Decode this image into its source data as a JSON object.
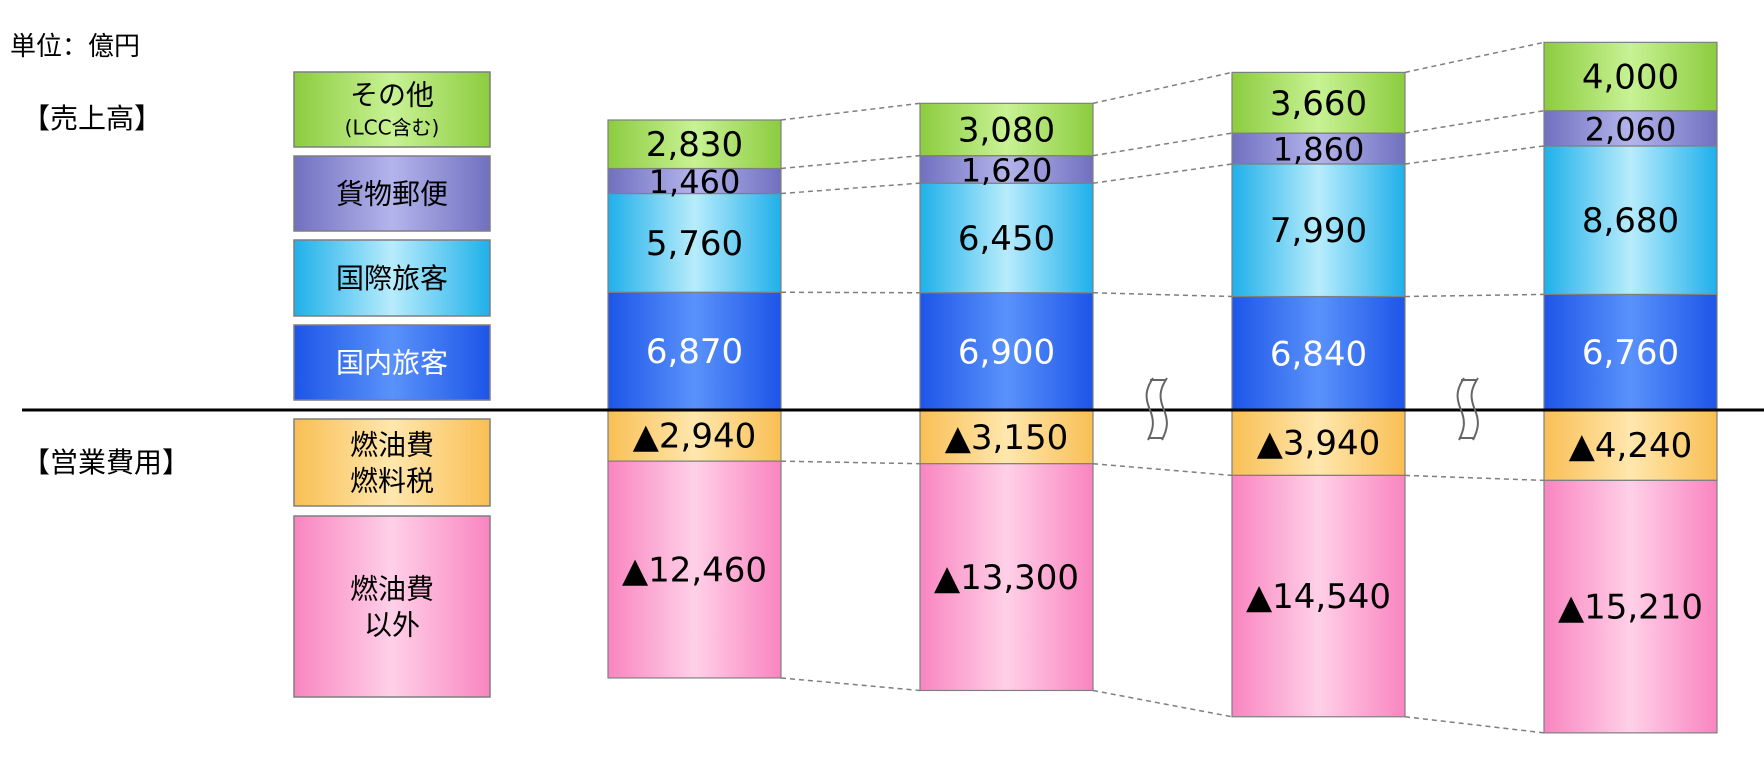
{
  "unit_label": "単位：億円",
  "revenue_heading": "【売上高】",
  "expense_heading": "【営業費用】",
  "legend": [
    {
      "key": "other",
      "lines": [
        "その他",
        "(LCC含む)"
      ],
      "color": "#a4d85e"
    },
    {
      "key": "cargo",
      "lines": [
        "貨物郵便"
      ],
      "color": "#8f8fd6"
    },
    {
      "key": "intl",
      "lines": [
        "国際旅客"
      ],
      "color": "#3ec0ef"
    },
    {
      "key": "dom",
      "lines": [
        "国内旅客"
      ],
      "color": "#2f6cf5"
    },
    {
      "key": "fuel",
      "lines": [
        "燃油費",
        "燃料税"
      ],
      "color": "#fdd27a"
    },
    {
      "key": "nonfuel",
      "lines": [
        "燃油費",
        "以外"
      ],
      "color": "#fba3d0"
    }
  ],
  "chart_data": {
    "type": "bar",
    "stacked": true,
    "categories": [
      "",
      "",
      "",
      ""
    ],
    "revenue_series": [
      {
        "key": "dom",
        "values": [
          6870,
          6900,
          6840,
          6760
        ],
        "labels": [
          "6,870",
          "6,900",
          "6,840",
          "6,760"
        ]
      },
      {
        "key": "intl",
        "values": [
          5760,
          6450,
          7990,
          8680
        ],
        "labels": [
          "5,760",
          "6,450",
          "7,990",
          "8,680"
        ]
      },
      {
        "key": "cargo",
        "values": [
          1460,
          1620,
          1860,
          2060
        ],
        "labels": [
          "1,460",
          "1,620",
          "1,860",
          "2,060"
        ]
      },
      {
        "key": "other",
        "values": [
          2830,
          3080,
          3660,
          4000
        ],
        "labels": [
          "2,830",
          "3,080",
          "3,660",
          "4,000"
        ]
      }
    ],
    "expense_series": [
      {
        "key": "fuel",
        "values": [
          -2940,
          -3150,
          -3940,
          -4240
        ],
        "labels": [
          "▲2,940",
          "▲3,150",
          "▲3,940",
          "▲4,240"
        ]
      },
      {
        "key": "nonfuel",
        "values": [
          -12460,
          -13300,
          -14540,
          -15210
        ],
        "labels": [
          "▲12,460",
          "▲13,300",
          "▲14,540",
          "▲15,210"
        ]
      }
    ],
    "axis_breaks": "between bars 2-3 and 3-4",
    "connector_lines": "dashed gray",
    "legend_placement": "left"
  }
}
